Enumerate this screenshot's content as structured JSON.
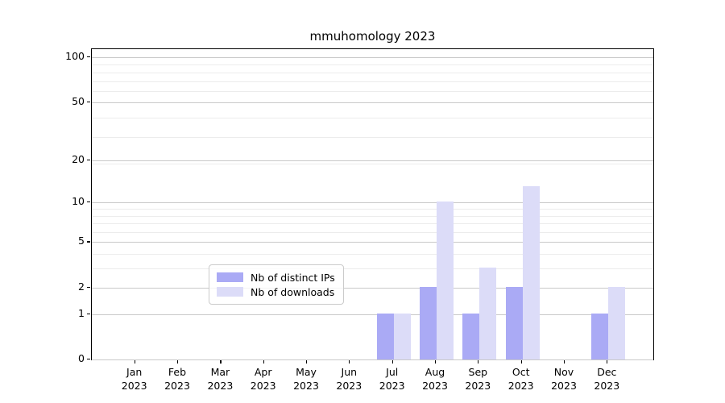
{
  "title": "mmuhomology 2023",
  "legend": [
    {
      "label": "Nb of distinct IPs",
      "color": "#aaaaf5"
    },
    {
      "label": "Nb of downloads",
      "color": "#dcdcf8"
    }
  ],
  "chart_data": {
    "type": "bar",
    "title": "mmuhomology 2023",
    "x_months": [
      "Jan",
      "Feb",
      "Mar",
      "Apr",
      "May",
      "Jun",
      "Jul",
      "Aug",
      "Sep",
      "Oct",
      "Nov",
      "Dec"
    ],
    "x_year": "2023",
    "series": [
      {
        "name": "Nb of distinct IPs",
        "color": "#aaaaf5",
        "values": [
          0,
          0,
          0,
          0,
          0,
          0,
          1,
          2,
          1,
          2,
          0,
          1
        ]
      },
      {
        "name": "Nb of downloads",
        "color": "#dcdcf8",
        "values": [
          0,
          0,
          0,
          0,
          0,
          0,
          1,
          10,
          3,
          13,
          0,
          2
        ]
      }
    ],
    "y_ticks": [
      0,
      1,
      2,
      5,
      10,
      20,
      50,
      100
    ],
    "y_scale": "log10(1+v)",
    "ylim": [
      0,
      100
    ],
    "grid": true,
    "legend_position": "lower center"
  }
}
